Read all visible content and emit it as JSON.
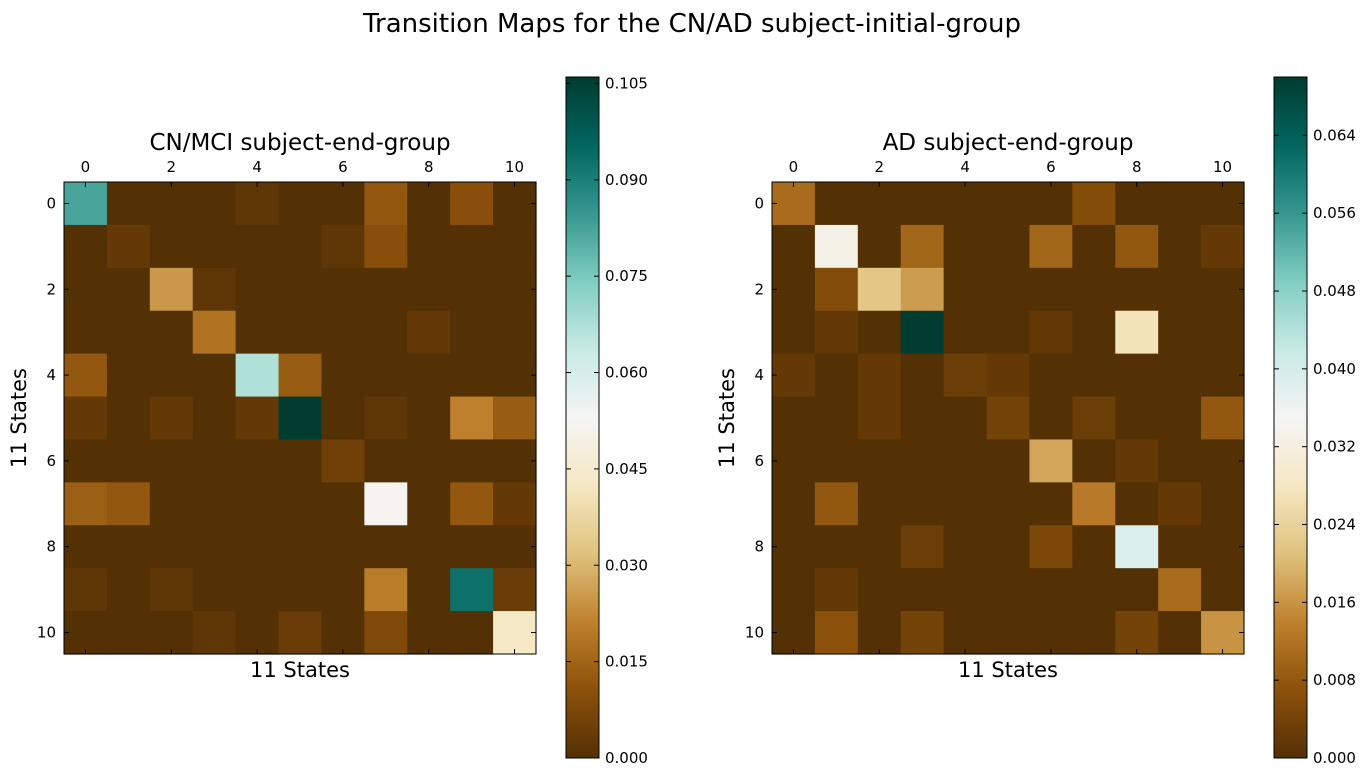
{
  "title": "Transition Maps for the CN/AD subject-initial-group",
  "colormap": {
    "name": "BrBG",
    "stops": [
      "#543005",
      "#8c510a",
      "#bf812d",
      "#dfc27d",
      "#f6e8c3",
      "#f5f5f5",
      "#c7eae5",
      "#80cdc1",
      "#35978f",
      "#01665e",
      "#003c30"
    ]
  },
  "chart_data": [
    {
      "type": "heatmap",
      "title": "CN/MCI subject-end-group",
      "xlabel": "11 States",
      "ylabel": "11 States",
      "x_ticks": [
        0,
        2,
        4,
        6,
        8,
        10
      ],
      "y_ticks": [
        0,
        2,
        4,
        6,
        8,
        10
      ],
      "vmin": 0.0,
      "vmax": 0.106,
      "colorbar_ticks": [
        "0.000",
        "0.015",
        "0.030",
        "0.045",
        "0.060",
        "0.075",
        "0.090",
        "0.105"
      ],
      "values": [
        [
          0.082,
          0.0,
          0.0,
          0.0,
          0.002,
          0.0,
          0.0,
          0.012,
          0.0,
          0.01,
          0.0
        ],
        [
          0.0,
          0.003,
          0.0,
          0.0,
          0.0,
          0.0,
          0.002,
          0.01,
          0.0,
          0.0,
          0.0
        ],
        [
          0.0,
          0.0,
          0.025,
          0.002,
          0.0,
          0.0,
          0.0,
          0.0,
          0.0,
          0.0,
          0.0
        ],
        [
          0.0,
          0.0,
          0.0,
          0.018,
          0.0,
          0.0,
          0.0,
          0.0,
          0.003,
          0.0,
          0.0
        ],
        [
          0.012,
          0.0,
          0.0,
          0.0,
          0.067,
          0.013,
          0.0,
          0.0,
          0.0,
          0.0,
          0.0
        ],
        [
          0.003,
          0.0,
          0.003,
          0.0,
          0.003,
          0.106,
          0.0,
          0.002,
          0.0,
          0.021,
          0.013
        ],
        [
          0.0,
          0.0,
          0.0,
          0.0,
          0.0,
          0.0,
          0.005,
          0.0,
          0.0,
          0.0,
          0.0
        ],
        [
          0.014,
          0.012,
          0.0,
          0.0,
          0.0,
          0.0,
          0.0,
          0.052,
          0.0,
          0.012,
          0.003
        ],
        [
          0.0,
          0.0,
          0.0,
          0.0,
          0.0,
          0.0,
          0.0,
          0.0,
          0.0,
          0.0,
          0.0
        ],
        [
          0.002,
          0.0,
          0.002,
          0.0,
          0.0,
          0.0,
          0.0,
          0.02,
          0.0,
          0.093,
          0.004
        ],
        [
          0.0,
          0.0,
          0.0,
          0.002,
          0.0,
          0.004,
          0.0,
          0.008,
          0.0,
          0.0,
          0.043
        ]
      ]
    },
    {
      "type": "heatmap",
      "title": "AD subject-end-group",
      "xlabel": "11 States",
      "ylabel": "11 States",
      "x_ticks": [
        0,
        2,
        4,
        6,
        8,
        10
      ],
      "y_ticks": [
        0,
        2,
        4,
        6,
        8,
        10
      ],
      "vmin": 0.0,
      "vmax": 0.07,
      "colorbar_ticks": [
        "0.000",
        "0.008",
        "0.016",
        "0.024",
        "0.032",
        "0.040",
        "0.048",
        "0.056",
        "0.064"
      ],
      "values": [
        [
          0.011,
          0.0,
          0.0,
          0.0,
          0.0,
          0.0,
          0.0,
          0.006,
          0.0,
          0.0,
          0.0
        ],
        [
          0.0,
          0.033,
          0.0,
          0.01,
          0.0,
          0.0,
          0.01,
          0.0,
          0.008,
          0.0,
          0.002
        ],
        [
          0.0,
          0.006,
          0.022,
          0.017,
          0.0,
          0.0,
          0.0,
          0.0,
          0.0,
          0.0,
          0.0
        ],
        [
          0.0,
          0.002,
          0.0,
          0.07,
          0.0,
          0.0,
          0.002,
          0.0,
          0.027,
          0.0,
          0.0
        ],
        [
          0.002,
          0.0,
          0.002,
          0.0,
          0.003,
          0.002,
          0.0,
          0.0,
          0.0,
          0.0,
          0.0
        ],
        [
          0.0,
          0.0,
          0.002,
          0.0,
          0.0,
          0.004,
          0.0,
          0.003,
          0.0,
          0.0,
          0.008
        ],
        [
          0.0,
          0.0,
          0.0,
          0.0,
          0.0,
          0.0,
          0.018,
          0.0,
          0.002,
          0.0,
          0.0
        ],
        [
          0.0,
          0.008,
          0.0,
          0.0,
          0.0,
          0.0,
          0.0,
          0.013,
          0.0,
          0.002,
          0.0
        ],
        [
          0.0,
          0.0,
          0.0,
          0.003,
          0.0,
          0.0,
          0.005,
          0.0,
          0.039,
          0.0,
          0.0
        ],
        [
          0.0,
          0.002,
          0.0,
          0.0,
          0.0,
          0.0,
          0.0,
          0.0,
          0.0,
          0.011,
          0.0
        ],
        [
          0.0,
          0.007,
          0.0,
          0.004,
          0.0,
          0.0,
          0.0,
          0.0,
          0.004,
          0.0,
          0.016
        ]
      ]
    }
  ]
}
